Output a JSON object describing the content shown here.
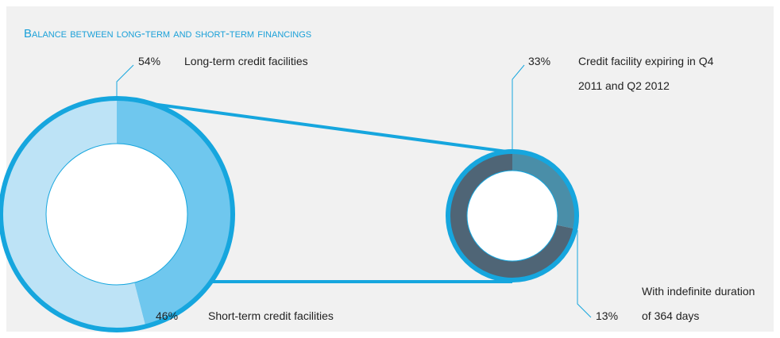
{
  "chart_data": [
    {
      "type": "pie",
      "title": "Balance between long-term and short-term financings",
      "categories": [
        "Short-term credit facilities",
        "Long-term credit facilities"
      ],
      "values": [
        46,
        54
      ],
      "value_labels": [
        "46%",
        "54%"
      ],
      "colors": [
        "#6fc7ee",
        "#bde3f6"
      ]
    },
    {
      "type": "pie",
      "categories": [
        "With indefinite duration of 364 days",
        "Credit facility expiring in Q4 2011 and Q2 2012"
      ],
      "values": [
        13,
        33
      ],
      "value_labels": [
        "13%",
        "33%"
      ],
      "colors": [
        "#4a8ea8",
        "#4f6576"
      ]
    }
  ]
}
